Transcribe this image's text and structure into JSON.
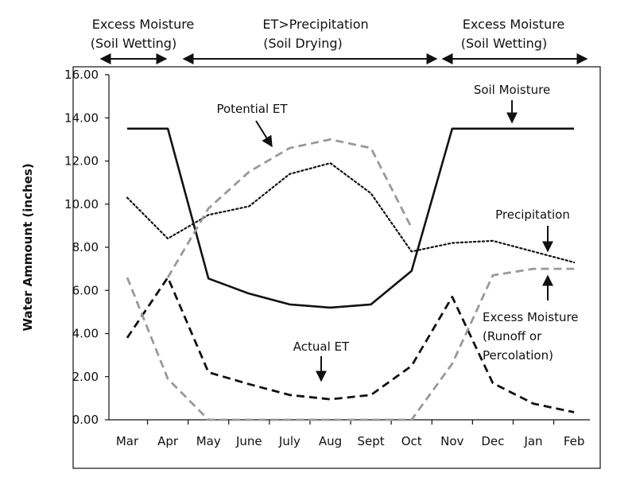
{
  "chart_data": {
    "type": "line",
    "title": "",
    "xlabel": "",
    "ylabel": "Water Ammount (inches)",
    "ylim": [
      0,
      16
    ],
    "y_ticks": [
      "0.00",
      "2.00",
      "4.00",
      "6.00",
      "8.00",
      "10.00",
      "12.00",
      "14.00",
      "16.00"
    ],
    "grid": false,
    "categories": [
      "Mar",
      "Apr",
      "May",
      "June",
      "July",
      "Aug",
      "Sept",
      "Oct",
      "Nov",
      "Dec",
      "Jan",
      "Feb"
    ],
    "series": [
      {
        "name": "Soil Moisture",
        "style": "solid",
        "color": "#111111",
        "values": [
          13.5,
          13.5,
          6.55,
          5.85,
          5.35,
          5.2,
          5.35,
          6.9,
          13.5,
          13.5,
          13.5,
          13.5
        ]
      },
      {
        "name": "Precipitation",
        "style": "dotted",
        "color": "#111111",
        "values": [
          10.3,
          8.4,
          9.5,
          9.9,
          11.4,
          11.9,
          10.5,
          7.8,
          8.2,
          8.3,
          7.8,
          7.3
        ]
      },
      {
        "name": "Actual ET",
        "style": "dashed",
        "color": "#111111",
        "values": [
          3.8,
          6.6,
          2.2,
          1.65,
          1.15,
          0.95,
          1.15,
          2.5,
          5.7,
          1.7,
          0.75,
          0.35
        ]
      },
      {
        "name": "Potential ET",
        "style": "dashed",
        "color": "#999999",
        "values": [
          null,
          6.6,
          9.8,
          11.5,
          12.6,
          13.0,
          12.6,
          8.9,
          null,
          null,
          null,
          null
        ]
      },
      {
        "name": "Excess Moisture",
        "style": "dashed",
        "color": "#999999",
        "values": [
          6.6,
          1.9,
          0.0,
          0.0,
          0.0,
          0.0,
          0.0,
          0.0,
          2.6,
          6.7,
          7.0,
          7.0
        ]
      }
    ],
    "annotations": [
      {
        "id": "soil-moisture",
        "text": "Soil Moisture"
      },
      {
        "id": "potential-et",
        "text": "Potential ET"
      },
      {
        "id": "precipitation",
        "text": "Precipitation"
      },
      {
        "id": "actual-et",
        "text": "Actual ET"
      },
      {
        "id": "excess-moisture",
        "lines": [
          "Excess Moisture",
          "(Runoff or",
          "Percolation)"
        ]
      }
    ],
    "periods": [
      {
        "lines": [
          "Excess Moisture",
          "(Soil Wetting)"
        ]
      },
      {
        "lines": [
          "ET>Precipitation",
          "(Soil Drying)"
        ]
      },
      {
        "lines": [
          "Excess Moisture",
          "(Soil Wetting)"
        ]
      }
    ]
  }
}
